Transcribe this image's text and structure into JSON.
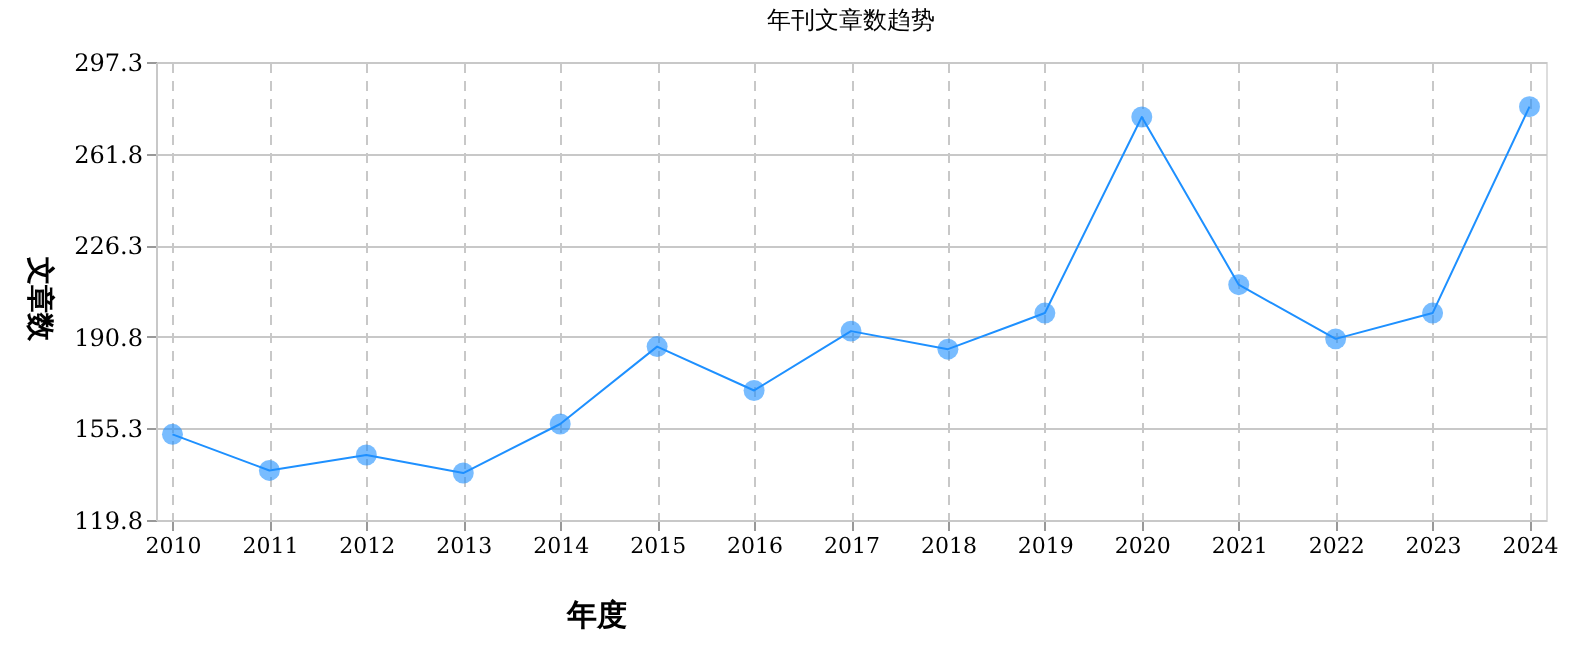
{
  "chart_data": {
    "type": "line",
    "title": "年刊文章数趋势",
    "xlabel": "年度",
    "ylabel": "文章数",
    "categories": [
      "2010",
      "2011",
      "2012",
      "2013",
      "2014",
      "2015",
      "2016",
      "2017",
      "2018",
      "2019",
      "2020",
      "2021",
      "2022",
      "2023",
      "2024"
    ],
    "series": [
      {
        "color": "#1e90ff",
        "values": [
          153,
          139,
          145,
          138,
          157,
          187,
          170,
          193,
          186,
          200,
          276,
          211,
          190,
          200,
          280
        ]
      }
    ],
    "ylim": [
      119.8,
      297.3
    ],
    "yticks": [
      119.8,
      155.3,
      190.8,
      226.3,
      261.8,
      297.3
    ],
    "grid": true,
    "marker": "circle",
    "line_style": "solid"
  }
}
